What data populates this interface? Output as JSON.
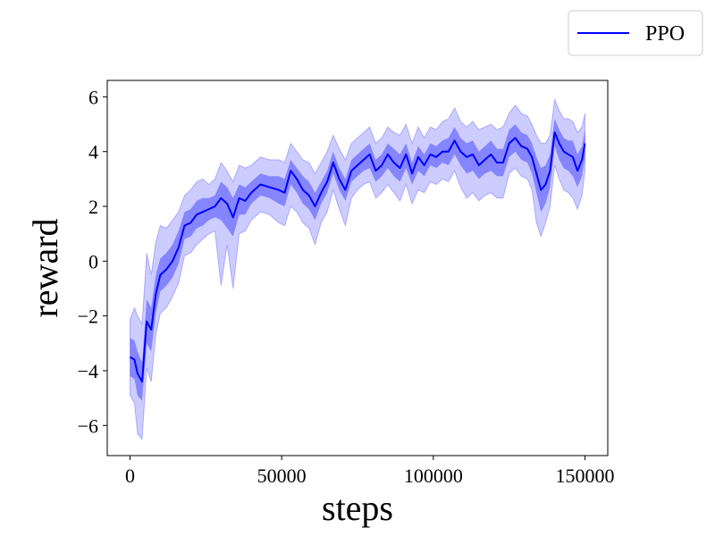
{
  "chart_data": {
    "type": "line",
    "title": "",
    "xlabel": "steps",
    "ylabel": "reward",
    "xlim": [
      -7500,
      157500
    ],
    "ylim": [
      -7.1,
      6.6
    ],
    "xticks": [
      0,
      50000,
      100000,
      150000
    ],
    "xtick_labels": [
      "0",
      "50000",
      "100000",
      "150000"
    ],
    "yticks": [
      -6,
      -4,
      -2,
      0,
      2,
      4,
      6
    ],
    "ytick_labels": [
      "−6",
      "−4",
      "−2",
      "0",
      "2",
      "4",
      "6"
    ],
    "grid": false,
    "legend": {
      "position": "top-right, outside the axes",
      "entries": [
        "PPO"
      ]
    },
    "series": [
      {
        "name": "PPO",
        "color": "#0000ff",
        "band_color": "#0000ff",
        "x": [
          0,
          1500,
          2500,
          4000,
          5500,
          7000,
          8500,
          10000,
          12000,
          14000,
          16000,
          18000,
          20000,
          22000,
          24000,
          26000,
          28000,
          30000,
          32000,
          34000,
          36000,
          38000,
          40000,
          43000,
          46000,
          49000,
          51000,
          53000,
          55000,
          57000,
          59000,
          61000,
          63000,
          65000,
          67000,
          69000,
          71000,
          73000,
          75000,
          77000,
          79000,
          81000,
          83000,
          85000,
          87000,
          89000,
          91000,
          93000,
          95000,
          97000,
          99000,
          101000,
          103000,
          105000,
          107000,
          109000,
          111000,
          113000,
          115000,
          117000,
          119000,
          121000,
          123000,
          125000,
          127000,
          129000,
          131000,
          132500,
          134000,
          135500,
          137000,
          138500,
          140000,
          141500,
          143000,
          144500,
          146000,
          147500,
          149000,
          150000
        ],
        "mean": [
          -3.5,
          -3.6,
          -4.1,
          -4.4,
          -2.2,
          -2.5,
          -1.2,
          -0.5,
          -0.3,
          0.0,
          0.5,
          1.3,
          1.4,
          1.7,
          1.8,
          1.9,
          2.0,
          2.3,
          2.1,
          1.6,
          2.3,
          2.2,
          2.5,
          2.8,
          2.7,
          2.6,
          2.5,
          3.3,
          3.0,
          2.6,
          2.4,
          2.0,
          2.5,
          2.9,
          3.6,
          3.0,
          2.6,
          3.3,
          3.5,
          3.7,
          3.9,
          3.3,
          3.5,
          3.9,
          3.6,
          3.4,
          3.9,
          3.2,
          3.8,
          3.5,
          3.9,
          3.8,
          4.0,
          4.0,
          4.4,
          4.0,
          3.8,
          3.9,
          3.5,
          3.7,
          3.9,
          3.6,
          3.6,
          4.3,
          4.5,
          4.2,
          4.1,
          3.8,
          3.2,
          2.6,
          2.8,
          3.3,
          4.7,
          4.3,
          4.0,
          3.9,
          3.8,
          3.3,
          3.7,
          4.3
        ],
        "inner_low": [
          -4.2,
          -4.3,
          -4.9,
          -5.1,
          -3.0,
          -3.3,
          -1.9,
          -1.1,
          -0.9,
          -0.6,
          -0.1,
          0.8,
          0.9,
          1.2,
          1.3,
          1.5,
          1.6,
          1.5,
          1.2,
          0.9,
          1.7,
          1.7,
          2.1,
          2.4,
          2.3,
          2.1,
          2.0,
          2.8,
          2.5,
          2.1,
          1.9,
          1.5,
          2.1,
          2.5,
          3.2,
          2.6,
          2.2,
          2.9,
          3.1,
          3.3,
          3.4,
          2.9,
          3.1,
          3.4,
          3.1,
          2.9,
          3.4,
          2.8,
          3.3,
          3.1,
          3.5,
          3.4,
          3.6,
          3.5,
          3.9,
          3.5,
          3.2,
          3.3,
          3.0,
          3.2,
          3.3,
          3.1,
          3.1,
          3.8,
          4.0,
          3.7,
          3.6,
          3.2,
          2.5,
          1.8,
          2.1,
          2.7,
          4.2,
          3.7,
          3.4,
          3.3,
          3.1,
          2.7,
          3.1,
          3.8
        ],
        "inner_high": [
          -2.8,
          -2.9,
          -3.3,
          -3.7,
          -1.4,
          -1.7,
          -0.5,
          0.1,
          0.3,
          0.6,
          1.1,
          1.8,
          1.9,
          2.2,
          2.3,
          2.3,
          2.4,
          2.9,
          2.7,
          2.3,
          2.8,
          2.7,
          2.9,
          3.2,
          3.1,
          3.1,
          3.0,
          3.7,
          3.4,
          3.1,
          2.9,
          2.5,
          2.9,
          3.3,
          4.0,
          3.4,
          3.0,
          3.7,
          3.9,
          4.1,
          4.3,
          3.7,
          3.9,
          4.3,
          4.1,
          3.9,
          4.3,
          3.6,
          4.2,
          3.9,
          4.3,
          4.2,
          4.4,
          4.5,
          4.9,
          4.5,
          4.3,
          4.4,
          4.0,
          4.2,
          4.4,
          4.1,
          4.1,
          4.8,
          5.0,
          4.7,
          4.6,
          4.3,
          3.8,
          3.4,
          3.5,
          3.9,
          5.2,
          4.8,
          4.5,
          4.4,
          4.4,
          3.9,
          4.2,
          4.8
        ],
        "outer_low": [
          -4.9,
          -5.2,
          -6.3,
          -6.5,
          -3.9,
          -4.4,
          -2.7,
          -1.9,
          -1.7,
          -1.3,
          -0.8,
          0.2,
          0.3,
          0.6,
          0.8,
          1.0,
          1.1,
          -0.9,
          0.6,
          -1.0,
          1.0,
          1.1,
          1.5,
          1.8,
          1.7,
          1.4,
          1.3,
          2.0,
          1.8,
          1.4,
          1.2,
          0.6,
          1.4,
          1.8,
          2.6,
          1.9,
          1.3,
          2.3,
          2.6,
          2.8,
          2.9,
          2.3,
          2.5,
          2.8,
          2.5,
          2.2,
          2.8,
          2.1,
          2.6,
          2.5,
          2.9,
          2.8,
          3.0,
          2.9,
          3.3,
          2.7,
          2.3,
          2.5,
          2.2,
          2.4,
          2.5,
          2.3,
          2.3,
          3.2,
          3.4,
          3.1,
          3.0,
          2.6,
          1.4,
          0.9,
          1.4,
          2.0,
          3.5,
          3.0,
          2.6,
          2.5,
          2.3,
          1.9,
          2.4,
          3.3
        ],
        "outer_high": [
          -2.1,
          -1.7,
          -2.0,
          -2.3,
          0.3,
          -0.5,
          0.7,
          1.3,
          1.2,
          1.5,
          1.8,
          2.4,
          2.6,
          2.9,
          3.0,
          2.8,
          3.0,
          3.6,
          3.3,
          2.9,
          3.5,
          3.4,
          3.5,
          3.8,
          3.7,
          3.7,
          3.6,
          4.3,
          4.0,
          3.7,
          3.6,
          3.2,
          3.6,
          4.0,
          4.6,
          4.1,
          3.7,
          4.3,
          4.5,
          4.7,
          4.9,
          4.3,
          4.5,
          4.9,
          4.7,
          4.6,
          5.0,
          4.3,
          4.9,
          4.5,
          4.9,
          4.8,
          5.1,
          5.2,
          5.6,
          5.1,
          4.9,
          5.1,
          4.8,
          4.9,
          5.0,
          4.8,
          4.9,
          5.4,
          5.7,
          5.4,
          5.3,
          5.0,
          4.6,
          4.3,
          4.3,
          4.6,
          5.9,
          5.5,
          5.2,
          5.2,
          5.1,
          4.7,
          4.9,
          5.4
        ]
      }
    ]
  }
}
